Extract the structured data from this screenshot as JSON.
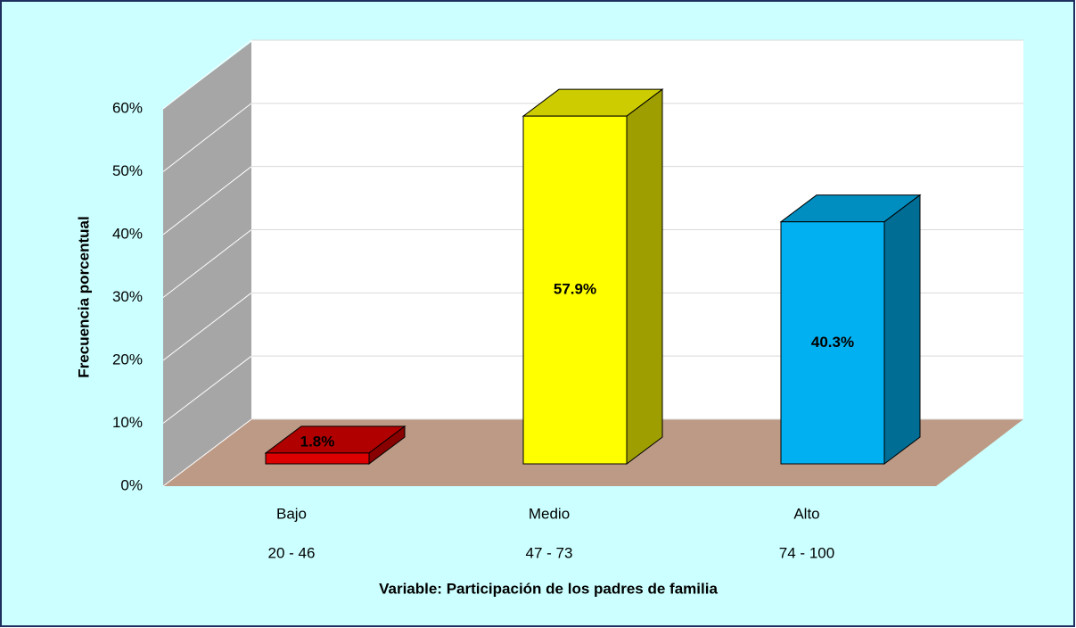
{
  "chart_data": {
    "type": "bar3d",
    "x_label": "Variable: Participación de los padres de familia",
    "y_label": "Frecuencia porcentual",
    "categories": [
      "Bajo",
      "Medio",
      "Alto"
    ],
    "ranges": [
      "20 - 46",
      "47 - 73",
      "74 - 100"
    ],
    "values": [
      1.8,
      57.9,
      40.3
    ],
    "value_labels": [
      "1.8%",
      "57.9%",
      "40.3%"
    ],
    "colors": [
      "#dd0000",
      "#ffff00",
      "#00b0f0"
    ],
    "ylim": [
      0,
      60
    ],
    "yticks": [
      {
        "value": 0,
        "label": "0%"
      },
      {
        "value": 10,
        "label": "10%"
      },
      {
        "value": 20,
        "label": "20%"
      },
      {
        "value": 30,
        "label": "30%"
      },
      {
        "value": 40,
        "label": "40%"
      },
      {
        "value": 50,
        "label": "50%"
      },
      {
        "value": 60,
        "label": "60%"
      }
    ],
    "grid": true
  }
}
